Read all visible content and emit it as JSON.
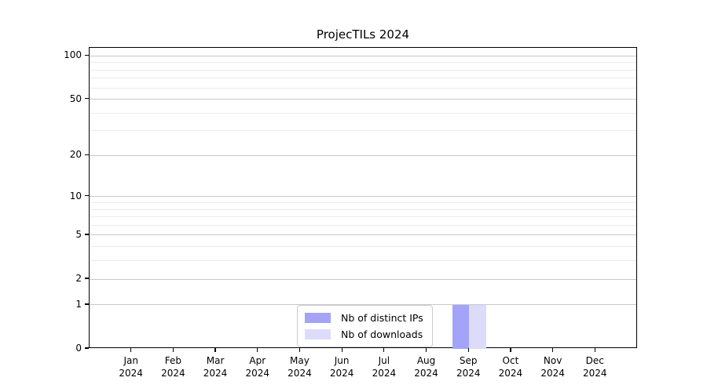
{
  "title": "ProjecTILs 2024",
  "chart_data": {
    "type": "bar",
    "title": "ProjecTILs 2024",
    "categories": [
      "Jan 2024",
      "Feb 2024",
      "Mar 2024",
      "Apr 2024",
      "May 2024",
      "Jun 2024",
      "Jul 2024",
      "Aug 2024",
      "Sep 2024",
      "Oct 2024",
      "Nov 2024",
      "Dec 2024"
    ],
    "series": [
      {
        "name": "Nb of distinct IPs",
        "color": "#a3a3f7",
        "values": [
          0,
          0,
          0,
          0,
          0,
          0,
          0,
          0,
          1,
          0,
          0,
          0
        ]
      },
      {
        "name": "Nb of downloads",
        "color": "#dcdcfa",
        "values": [
          0,
          0,
          0,
          0,
          0,
          0,
          0,
          0,
          1,
          0,
          0,
          0
        ]
      }
    ],
    "xlabel": "",
    "ylabel": "",
    "yscale": "log1p",
    "ylim": [
      0,
      113.5
    ],
    "y_major_ticks": [
      0,
      1,
      2,
      5,
      10,
      20,
      50,
      100
    ],
    "y_minor_ticks": [
      3,
      4,
      6,
      7,
      8,
      9,
      30,
      40,
      60,
      70,
      80,
      90
    ],
    "grid": true,
    "legend_position": "lower center"
  }
}
